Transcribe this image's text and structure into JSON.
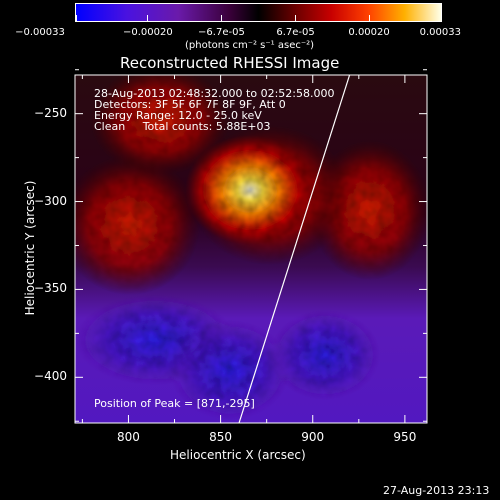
{
  "colorbar": {
    "ticks": [
      "-0.00033",
      "-0.00020",
      "-6.7e-05",
      "6.7e-05",
      "0.00020",
      "0.00033"
    ],
    "unit": "(photons cm⁻² s⁻¹ asec⁻²)"
  },
  "annotations": {
    "time_range": "28-Aug-2013 02:48:32.000 to 02:52:58.000",
    "detectors": "Detectors: 3F 5F 6F 7F 8F 9F, Att 0",
    "energy_range": "Energy Range: 12.0 - 25.0 keV",
    "method": "Clean     Total counts: 5.88E+03",
    "peak": "Position of Peak = [871,-295]"
  },
  "footer_timestamp": "27-Aug-2013 23:13",
  "chart_data": {
    "type": "heatmap",
    "title": "Reconstructed RHESSI Image",
    "xlabel": "Heliocentric X (arcsec)",
    "ylabel": "Heliocentric Y (arcsec)",
    "xlim": [
      771,
      962
    ],
    "ylim": [
      -426,
      -228
    ],
    "xticks": [
      800,
      850,
      900,
      950
    ],
    "yticks": [
      -250,
      -300,
      -350,
      -400
    ],
    "clim": [
      -0.00033,
      0.00033
    ],
    "peak": [
      871,
      -295
    ],
    "limb_line": [
      [
        860,
        -426
      ],
      [
        920,
        -228
      ]
    ]
  },
  "colors": {
    "background": "#000000",
    "text": "#ffffff"
  }
}
